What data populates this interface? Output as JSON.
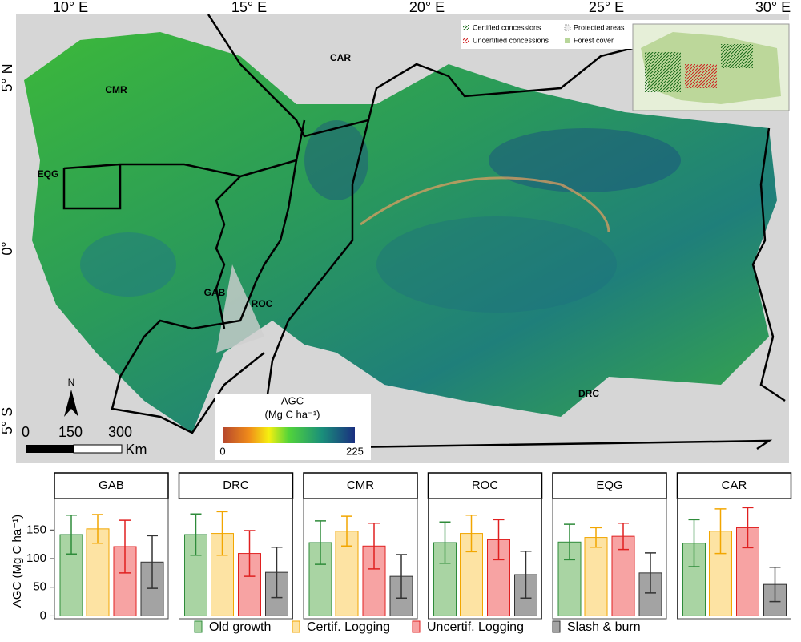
{
  "map": {
    "lon_ticks": [
      "10° E",
      "15° E",
      "20° E",
      "25° E",
      "30° E"
    ],
    "lat_ticks": [
      "5° N",
      "0°",
      "5° S"
    ],
    "country_labels": [
      "CMR",
      "EQG",
      "GAB",
      "ROC",
      "CAR",
      "DRC"
    ],
    "scale_bar": [
      "0",
      "150",
      "300",
      "Km"
    ],
    "north": "N",
    "colorbar": {
      "title": "AGC",
      "unit": "(Mg C ha⁻¹)",
      "min": "0",
      "max": "225"
    },
    "inset_legend": [
      "Certified concessions",
      "Uncertified concessions",
      "Protected areas",
      "Forest cover"
    ]
  },
  "chart_data": {
    "type": "bar",
    "y_label": "AGC (Mg C ha⁻¹)",
    "panels": [
      "GAB",
      "DRC",
      "CMR",
      "ROC",
      "EQG",
      "CAR"
    ],
    "ylim": [
      -5,
      205
    ],
    "yticks": [
      0,
      50,
      100,
      150
    ],
    "series": [
      {
        "name": "Old growth",
        "color": "#a9d4a3",
        "edge": "#2e8b3a",
        "values": [
          142,
          142,
          128,
          128,
          129,
          127
        ],
        "errors": [
          34,
          36,
          38,
          36,
          31,
          41
        ]
      },
      {
        "name": "Certif. Logging",
        "color": "#fde3a3",
        "edge": "#f2a600",
        "values": [
          152,
          144,
          148,
          144,
          137,
          148
        ],
        "errors": [
          25,
          38,
          26,
          32,
          17,
          39
        ]
      },
      {
        "name": "Uncertif. Logging",
        "color": "#f7a3a3",
        "edge": "#e02020",
        "values": [
          121,
          109,
          122,
          133,
          139,
          154
        ],
        "errors": [
          46,
          40,
          40,
          35,
          23,
          35
        ]
      },
      {
        "name": "Slash & burn",
        "color": "#a3a3a3",
        "edge": "#333333",
        "values": [
          94,
          76,
          69,
          72,
          75,
          55
        ],
        "errors": [
          46,
          44,
          38,
          41,
          35,
          30
        ]
      }
    ]
  }
}
